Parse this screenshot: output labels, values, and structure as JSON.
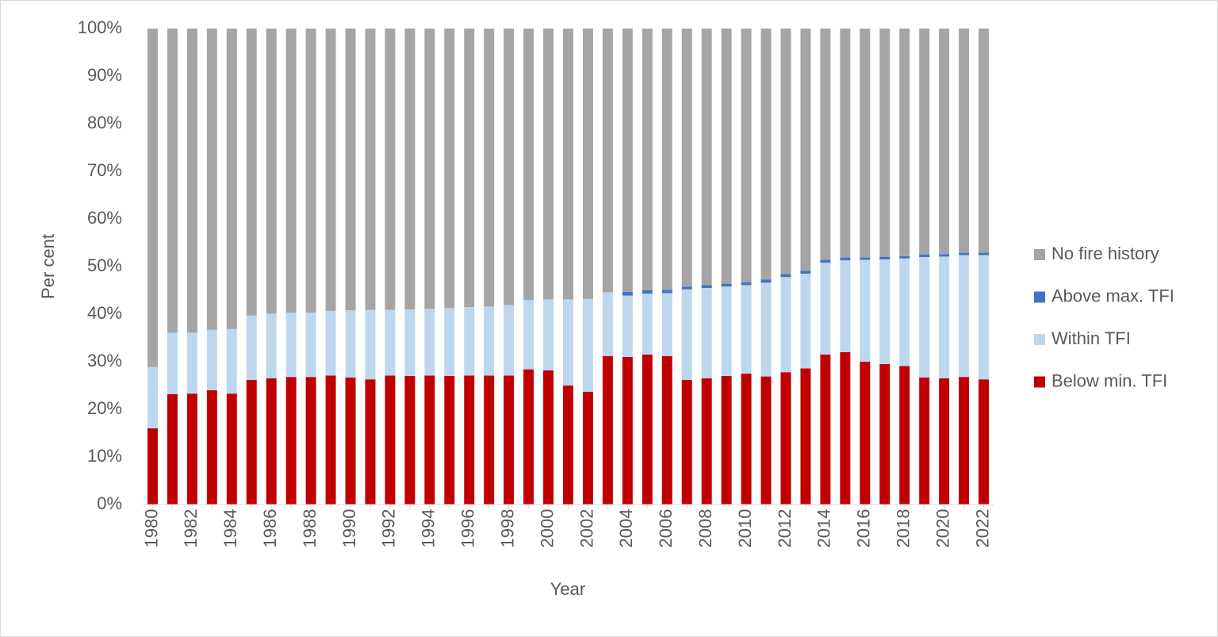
{
  "chart_data": {
    "type": "stacked_bar",
    "y_label": "Per cent",
    "x_label": "Year",
    "categories": [
      "1980",
      null,
      "1982",
      null,
      "1984",
      null,
      "1986",
      null,
      "1988",
      null,
      "1990",
      null,
      "1992",
      null,
      "1994",
      null,
      "1996",
      null,
      "1998",
      null,
      "2000",
      null,
      "2002",
      null,
      "2004",
      null,
      "2006",
      null,
      "2008",
      null,
      "2010",
      null,
      "2012",
      null,
      "2014",
      null,
      "2016",
      null,
      "2018",
      null,
      "2020",
      null,
      "2022"
    ],
    "series": [
      {
        "name": "Below min. TFI",
        "color": "#c00000",
        "values": [
          16,
          23.2,
          23.3,
          24,
          23.3,
          26.2,
          26.5,
          26.8,
          26.8,
          27.1,
          26.7,
          26.3,
          27.1,
          27,
          27.1,
          27,
          27.1,
          27.1,
          27.1,
          28.4,
          28.2,
          25,
          23.7,
          31.2,
          31,
          31.5,
          31.2,
          26.2,
          26.5,
          27,
          27.5,
          26.9,
          27.8,
          28.6,
          31.5,
          32,
          30,
          29.5,
          29.1,
          26.7,
          26.5,
          26.8,
          26.3
        ]
      },
      {
        "name": "Within TFI",
        "color": "#bdd7ee",
        "values": [
          12.9,
          12.9,
          12.8,
          12.7,
          13.6,
          13.5,
          13.6,
          13.5,
          13.5,
          13.6,
          14.1,
          14.6,
          13.8,
          14,
          14,
          14.3,
          14.4,
          14.5,
          14.8,
          14.6,
          14.9,
          18.1,
          19.5,
          13.4,
          12.9,
          12.8,
          13.2,
          19,
          19,
          18.8,
          18.6,
          19.7,
          20,
          19.9,
          19.3,
          19.3,
          21.4,
          22,
          22.6,
          25.3,
          25.6,
          25.6,
          26.1
        ]
      },
      {
        "name": "Above max. TFI",
        "color": "#4472c4",
        "values": [
          0,
          0,
          0,
          0,
          0,
          0,
          0,
          0,
          0,
          0,
          0,
          0,
          0,
          0,
          0,
          0,
          0,
          0,
          0,
          0,
          0,
          0,
          0,
          0,
          0.8,
          0.7,
          0.7,
          0.6,
          0.6,
          0.6,
          0.6,
          0.7,
          0.6,
          0.6,
          0.6,
          0.6,
          0.5,
          0.5,
          0.5,
          0.5,
          0.5,
          0.5,
          0.5
        ]
      },
      {
        "name": "No fire history",
        "color": "#a5a5a5",
        "values": [
          71.1,
          63.9,
          63.9,
          63.3,
          63.1,
          60.3,
          59.9,
          59.7,
          59.7,
          59.3,
          59.2,
          59.1,
          59.1,
          59,
          58.9,
          58.7,
          58.5,
          58.4,
          58.1,
          57,
          56.9,
          56.9,
          56.8,
          55.4,
          55.3,
          55,
          54.9,
          54.2,
          53.9,
          53.6,
          53.3,
          52.7,
          51.6,
          50.9,
          48.6,
          48.1,
          48.1,
          48,
          47.8,
          47.5,
          47.4,
          47.1,
          47.1
        ]
      }
    ],
    "ylim": [
      0,
      100
    ],
    "yticks": [
      {
        "value": 0,
        "label": "0%"
      },
      {
        "value": 10,
        "label": "10%"
      },
      {
        "value": 20,
        "label": "20%"
      },
      {
        "value": 30,
        "label": "30%"
      },
      {
        "value": 40,
        "label": "40%"
      },
      {
        "value": 50,
        "label": "50%"
      },
      {
        "value": 60,
        "label": "60%"
      },
      {
        "value": 70,
        "label": "70%"
      },
      {
        "value": 80,
        "label": "80%"
      },
      {
        "value": 90,
        "label": "90%"
      },
      {
        "value": 100,
        "label": "100%"
      }
    ],
    "grid": false,
    "legend": "right"
  }
}
